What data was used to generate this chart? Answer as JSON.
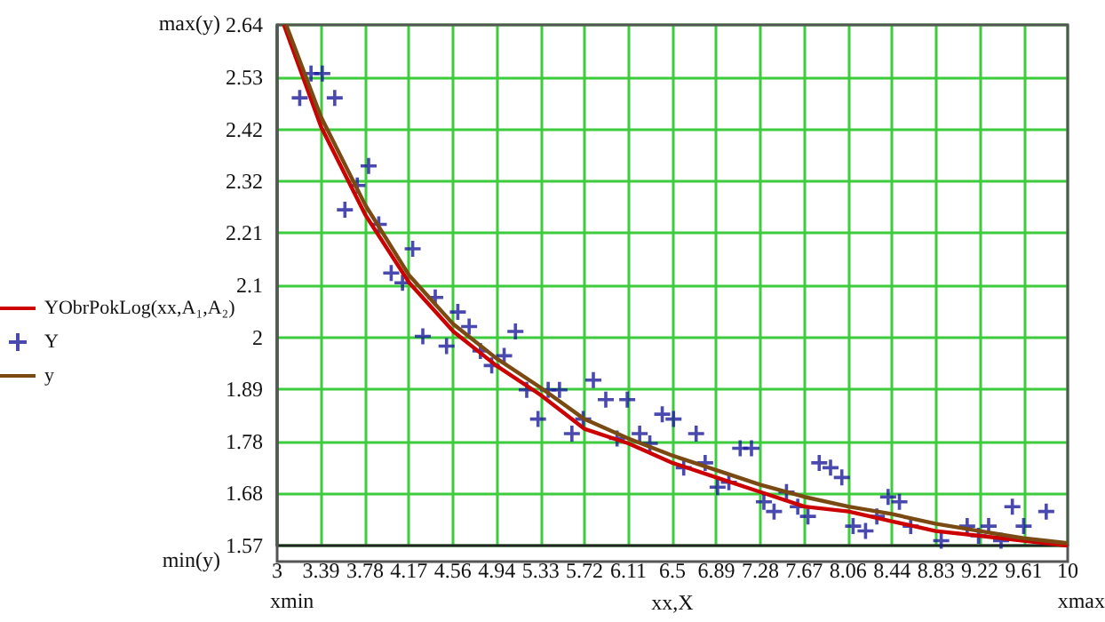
{
  "chart_data": {
    "type": "line",
    "xlabel": "xx,X",
    "annotations": [
      "max(y)",
      "min(y)",
      "xmin",
      "xmax"
    ],
    "xlim": [
      3,
      10
    ],
    "xticks": [
      {
        "value": 3,
        "label": "3"
      },
      {
        "value": 3.3889,
        "label": "3.39"
      },
      {
        "value": 3.7778,
        "label": "3.78"
      },
      {
        "value": 4.1667,
        "label": "4.17"
      },
      {
        "value": 4.5556,
        "label": "4.56"
      },
      {
        "value": 4.9444,
        "label": "4.94"
      },
      {
        "value": 5.3333,
        "label": "5.33"
      },
      {
        "value": 5.7222,
        "label": "5.72"
      },
      {
        "value": 6.1111,
        "label": "6.11"
      },
      {
        "value": 6.5,
        "label": "6.5"
      },
      {
        "value": 6.8889,
        "label": "6.89"
      },
      {
        "value": 7.2778,
        "label": "7.28"
      },
      {
        "value": 7.6667,
        "label": "7.67"
      },
      {
        "value": 8.0556,
        "label": "8.06"
      },
      {
        "value": 8.4444,
        "label": "8.44"
      },
      {
        "value": 8.8333,
        "label": "8.83"
      },
      {
        "value": 9.2222,
        "label": "9.22"
      },
      {
        "value": 9.6111,
        "label": "9.61"
      },
      {
        "value": 10,
        "label": "10"
      }
    ],
    "ylim": [
      1.57,
      2.64
    ],
    "yticks": [
      {
        "value": 1.57,
        "label": "1.57"
      },
      {
        "value": 1.677,
        "label": "1.68"
      },
      {
        "value": 1.784,
        "label": "1.78"
      },
      {
        "value": 1.891,
        "label": "1.89"
      },
      {
        "value": 1.998,
        "label": "2"
      },
      {
        "value": 2.105,
        "label": "2.1"
      },
      {
        "value": 2.212,
        "label": "2.21"
      },
      {
        "value": 2.319,
        "label": "2.32"
      },
      {
        "value": 2.424,
        "label": "2.42"
      },
      {
        "value": 2.533,
        "label": "2.53"
      },
      {
        "value": 2.64,
        "label": "2.64"
      }
    ],
    "grid": true,
    "legend": "left",
    "series": [
      {
        "name": "YObrPokLog(xx,A₁,A₂)",
        "color": "#cc0000",
        "x": [
          3.06,
          3.39,
          3.78,
          4.17,
          4.56,
          4.94,
          5.33,
          5.72,
          6.11,
          6.5,
          6.89,
          7.28,
          7.67,
          8.06,
          8.44,
          8.83,
          9.22,
          9.61,
          10
        ],
        "values": [
          2.64,
          2.43,
          2.25,
          2.11,
          2.01,
          1.94,
          1.88,
          1.81,
          1.78,
          1.74,
          1.71,
          1.68,
          1.65,
          1.64,
          1.62,
          1.6,
          1.59,
          1.58,
          1.57
        ]
      },
      {
        "name": "Y",
        "type": "scatter",
        "marker": "cross",
        "color": "#1c1c9c",
        "x": [
          3.2,
          3.3,
          3.4,
          3.51,
          3.6,
          3.71,
          3.81,
          3.9,
          4.01,
          4.11,
          4.2,
          4.29,
          4.4,
          4.5,
          4.6,
          4.7,
          4.8,
          4.9,
          5.01,
          5.11,
          5.21,
          5.31,
          5.4,
          5.5,
          5.61,
          5.71,
          5.8,
          5.91,
          6.01,
          6.1,
          6.21,
          6.3,
          6.41,
          6.51,
          6.6,
          6.71,
          6.79,
          6.9,
          7.0,
          7.1,
          7.2,
          7.31,
          7.4,
          7.51,
          7.61,
          7.7,
          7.8,
          7.9,
          8.0,
          8.1,
          8.21,
          8.31,
          8.41,
          8.51,
          8.61,
          8.88,
          9.11,
          9.21,
          9.3,
          9.41,
          9.51,
          9.61,
          9.81
        ],
        "values": [
          2.49,
          2.54,
          2.54,
          2.49,
          2.26,
          2.31,
          2.35,
          2.23,
          2.13,
          2.11,
          2.18,
          2.0,
          2.08,
          1.98,
          2.05,
          2.02,
          1.97,
          1.94,
          1.96,
          2.01,
          1.89,
          1.83,
          1.89,
          1.89,
          1.8,
          1.83,
          1.91,
          1.87,
          1.79,
          1.87,
          1.8,
          1.78,
          1.84,
          1.83,
          1.73,
          1.8,
          1.74,
          1.69,
          1.7,
          1.77,
          1.77,
          1.66,
          1.64,
          1.68,
          1.65,
          1.63,
          1.74,
          1.73,
          1.71,
          1.61,
          1.6,
          1.63,
          1.67,
          1.66,
          1.61,
          1.58,
          1.61,
          1.59,
          1.61,
          1.58,
          1.65,
          1.61,
          1.64
        ]
      },
      {
        "name": "y",
        "type": "line",
        "color": "#7a4a12",
        "x": [
          3.08,
          3.39,
          3.78,
          4.17,
          4.56,
          4.94,
          5.33,
          5.72,
          6.11,
          6.5,
          6.89,
          7.28,
          7.67,
          8.06,
          8.44,
          8.83,
          9.22,
          9.61,
          10
        ],
        "values": [
          2.64,
          2.45,
          2.27,
          2.125,
          2.025,
          1.955,
          1.895,
          1.83,
          1.79,
          1.755,
          1.725,
          1.695,
          1.67,
          1.65,
          1.635,
          1.615,
          1.6,
          1.585,
          1.575
        ]
      }
    ]
  }
}
